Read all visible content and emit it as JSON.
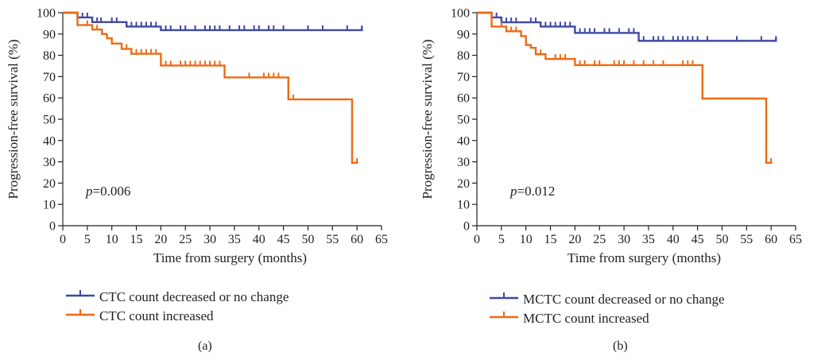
{
  "colors": {
    "blue": "#3f48a5",
    "orange": "#ee6a14",
    "axis": "#222222"
  },
  "chart_data": [
    {
      "type": "line",
      "panel_label": "(a)",
      "xlabel": "Time from surgery (months)",
      "ylabel": "Progression-free survival (%)",
      "xlim": [
        0,
        65
      ],
      "ylim": [
        0,
        100
      ],
      "xticks": [
        "0",
        "5",
        "10",
        "15",
        "20",
        "25",
        "30",
        "35",
        "40",
        "45",
        "50",
        "55",
        "60",
        "65"
      ],
      "yticks": [
        "0",
        "10",
        "20",
        "30",
        "40",
        "50",
        "60",
        "70",
        "80",
        "90",
        "100"
      ],
      "annotation": {
        "p_letter": "p",
        "p_value": "=0.006"
      },
      "series": [
        {
          "name": "CTC count decreased or no change",
          "color": "#3f48a5",
          "steps": [
            [
              0,
              100
            ],
            [
              3,
              97.8
            ],
            [
              6,
              95.6
            ],
            [
              13,
              93.5
            ],
            [
              20,
              91.8
            ],
            [
              61,
              91.8
            ]
          ],
          "end": [
            61,
            93
          ],
          "censored": [
            4,
            5,
            7,
            7.8,
            10,
            11,
            13,
            14,
            15,
            16,
            17,
            18,
            19,
            21,
            22,
            24,
            25,
            27,
            29,
            30,
            31,
            32,
            34,
            36,
            37,
            39,
            40,
            42,
            43,
            45,
            50,
            53,
            58,
            61
          ]
        },
        {
          "name": "CTC count increased",
          "color": "#ee6a14",
          "steps": [
            [
              0,
              100
            ],
            [
              3,
              94.2
            ],
            [
              6,
              92.1
            ],
            [
              8,
              90.0
            ],
            [
              9,
              88.0
            ],
            [
              10,
              85.5
            ],
            [
              12,
              83.0
            ],
            [
              14,
              80.7
            ],
            [
              20,
              75.2
            ],
            [
              33,
              69.6
            ],
            [
              46,
              59.3
            ],
            [
              59,
              29.5
            ]
          ],
          "end": [
            60,
            30.5
          ],
          "censored": [
            5,
            7,
            8,
            12,
            13,
            15,
            16,
            17,
            18,
            19,
            21,
            22,
            24,
            25,
            26,
            27,
            28,
            29,
            30,
            31,
            32,
            38,
            41,
            42,
            43,
            44,
            47,
            60
          ]
        }
      ]
    },
    {
      "type": "line",
      "panel_label": "(b)",
      "xlabel": "Time from surgery (months)",
      "ylabel": "Progression-free survival (%)",
      "xlim": [
        0,
        65
      ],
      "ylim": [
        0,
        100
      ],
      "xticks": [
        "0",
        "5",
        "10",
        "15",
        "20",
        "25",
        "30",
        "35",
        "40",
        "45",
        "50",
        "55",
        "60",
        "65"
      ],
      "yticks": [
        "0",
        "10",
        "20",
        "30",
        "40",
        "50",
        "60",
        "70",
        "80",
        "90",
        "100"
      ],
      "annotation": {
        "p_letter": "p",
        "p_value": "=0.012"
      },
      "series": [
        {
          "name": "MCTC count decreased or no change",
          "color": "#3f48a5",
          "steps": [
            [
              0,
              100
            ],
            [
              3,
              97.8
            ],
            [
              5,
              95.5
            ],
            [
              13,
              93.5
            ],
            [
              20,
              90.5
            ],
            [
              33,
              86.8
            ],
            [
              61,
              86.8
            ]
          ],
          "end": [
            61,
            88
          ],
          "censored": [
            4,
            6,
            7,
            8,
            11,
            12,
            14,
            15,
            16,
            17,
            18,
            19,
            21,
            22,
            23,
            24,
            26,
            27,
            29,
            31,
            32,
            34,
            36,
            37,
            38,
            40,
            41,
            42,
            43,
            44,
            45,
            47,
            53,
            58,
            61
          ]
        },
        {
          "name": "MCTC count increased",
          "color": "#ee6a14",
          "steps": [
            [
              0,
              100
            ],
            [
              3,
              93.5
            ],
            [
              6,
              91.3
            ],
            [
              9,
              89.0
            ],
            [
              10,
              84.8
            ],
            [
              11,
              83.5
            ],
            [
              12,
              80.5
            ],
            [
              14,
              78.3
            ],
            [
              20,
              75.4
            ],
            [
              46,
              59.7
            ],
            [
              59,
              29.5
            ]
          ],
          "end": [
            60,
            30.5
          ],
          "censored": [
            5,
            7,
            8,
            10,
            13,
            16,
            17,
            18,
            21,
            22,
            24,
            25,
            28,
            29,
            30,
            32,
            34,
            36,
            38,
            42,
            43,
            44,
            60
          ]
        }
      ]
    }
  ]
}
